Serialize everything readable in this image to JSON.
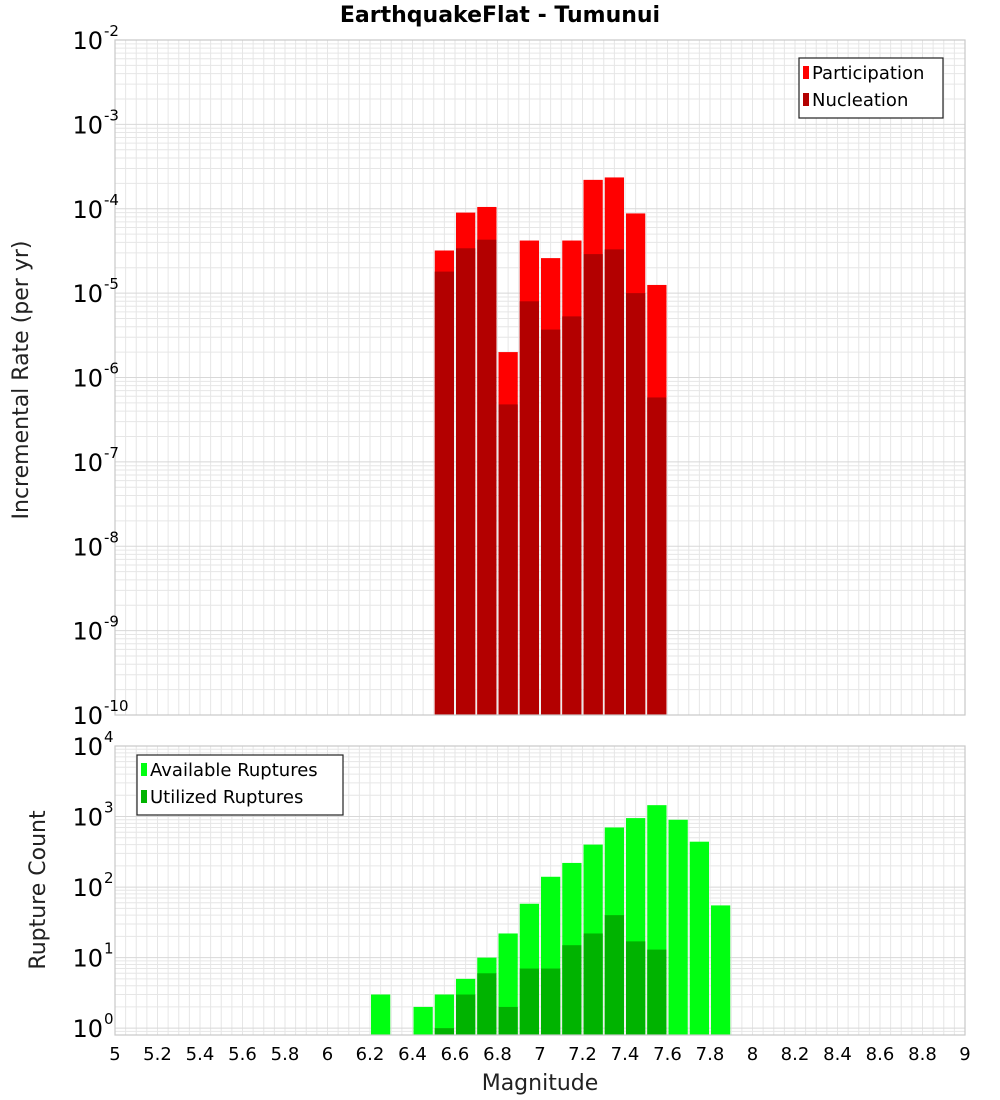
{
  "title": "EarthquakeFlat - Tumunui",
  "xlabel": "Magnitude",
  "x_ticks": [
    "5",
    "5.2",
    "5.4",
    "5.6",
    "5.8",
    "6",
    "6.2",
    "6.4",
    "6.6",
    "6.8",
    "7",
    "7.2",
    "7.4",
    "7.6",
    "7.8",
    "8",
    "8.2",
    "8.4",
    "8.6",
    "8.8",
    "9"
  ],
  "colors": {
    "participation": "#ff0000",
    "nucleation": "#b30000",
    "available": "#00ff11",
    "utilized": "#00b300",
    "grid": "#e6e6e6",
    "frame": "#c8c8c8"
  },
  "chart_data": [
    {
      "type": "bar",
      "ylabel": "Incremental Rate (per yr)",
      "yscale": "log",
      "xlim": [
        5,
        9
      ],
      "ylim": [
        1e-10,
        0.01
      ],
      "y_ticks": [
        {
          "base": "10",
          "exp": "-10"
        },
        {
          "base": "10",
          "exp": "-9"
        },
        {
          "base": "10",
          "exp": "-8"
        },
        {
          "base": "10",
          "exp": "-7"
        },
        {
          "base": "10",
          "exp": "-6"
        },
        {
          "base": "10",
          "exp": "-5"
        },
        {
          "base": "10",
          "exp": "-4"
        },
        {
          "base": "10",
          "exp": "-3"
        },
        {
          "base": "10",
          "exp": "-2"
        }
      ],
      "legend_position": "top-right",
      "x": [
        6.55,
        6.65,
        6.75,
        6.85,
        6.95,
        7.05,
        7.15,
        7.25,
        7.35,
        7.45,
        7.55
      ],
      "series": [
        {
          "name": "Participation",
          "values": [
            3.2e-05,
            9e-05,
            0.000105,
            2e-06,
            4.2e-05,
            2.6e-05,
            4.2e-05,
            0.00022,
            0.000235,
            8.8e-05,
            1.25e-05
          ]
        },
        {
          "name": "Nucleation",
          "values": [
            1.8e-05,
            3.4e-05,
            4.3e-05,
            4.8e-07,
            8e-06,
            3.7e-06,
            5.3e-06,
            2.9e-05,
            3.3e-05,
            1e-05,
            5.8e-07
          ]
        }
      ]
    },
    {
      "type": "bar",
      "ylabel": "Rupture Count",
      "yscale": "log",
      "xlim": [
        5,
        9
      ],
      "ylim": [
        0.8,
        10000
      ],
      "y_ticks": [
        {
          "base": "10",
          "exp": "0"
        },
        {
          "base": "10",
          "exp": "1"
        },
        {
          "base": "10",
          "exp": "2"
        },
        {
          "base": "10",
          "exp": "3"
        },
        {
          "base": "10",
          "exp": "4"
        }
      ],
      "legend_position": "top-left",
      "x": [
        6.25,
        6.35,
        6.45,
        6.55,
        6.65,
        6.75,
        6.85,
        6.95,
        7.05,
        7.15,
        7.25,
        7.35,
        7.45,
        7.55,
        7.65,
        7.75,
        7.85
      ],
      "series": [
        {
          "name": "Available Ruptures",
          "values": [
            3,
            0,
            2,
            3,
            5,
            10,
            22,
            58,
            140,
            220,
            400,
            700,
            950,
            1450,
            900,
            440,
            55
          ]
        },
        {
          "name": "Utilized Ruptures",
          "values": [
            0,
            0,
            0,
            1,
            3,
            6,
            2,
            7,
            7,
            15,
            22,
            40,
            17,
            13,
            0,
            0,
            0
          ]
        }
      ]
    }
  ]
}
